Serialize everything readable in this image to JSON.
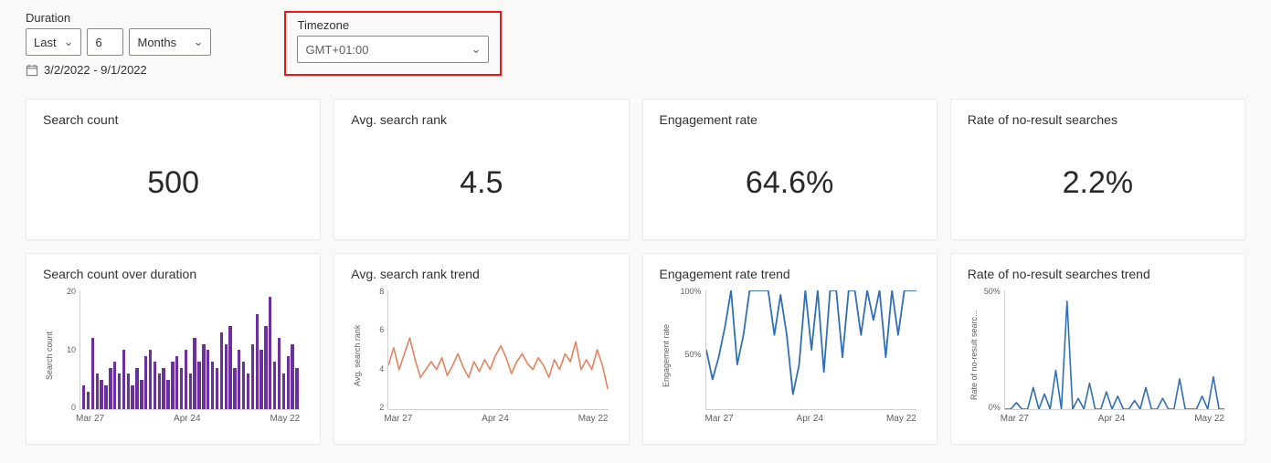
{
  "controls": {
    "duration_label": "Duration",
    "rel_value": "Last",
    "count_value": "6",
    "unit_value": "Months",
    "date_range": "3/2/2022 - 9/1/2022",
    "timezone_label": "Timezone",
    "timezone_value": "GMT+01:00"
  },
  "kpis": [
    {
      "title": "Search count",
      "value": "500"
    },
    {
      "title": "Avg. search rank",
      "value": "4.5"
    },
    {
      "title": "Engagement rate",
      "value": "64.6%"
    },
    {
      "title": "Rate of no-result searches",
      "value": "2.2%"
    }
  ],
  "charts": {
    "colors": {
      "bar": "#6b2fa0",
      "line_orange": "#e8825d",
      "line_blue": "#2f6fb5",
      "axis": "#d2d0ce",
      "text": "#605e5c"
    },
    "x_ticks": [
      "Mar 27",
      "Apr 24",
      "May 22"
    ],
    "search_count": {
      "title": "Search count over duration",
      "type": "bar",
      "y_label": "Search count",
      "y_ticks": [
        "20",
        "10",
        "0"
      ],
      "ylim": [
        0,
        20
      ],
      "values": [
        4,
        3,
        12,
        6,
        5,
        4,
        7,
        8,
        6,
        10,
        6,
        4,
        7,
        5,
        9,
        10,
        8,
        6,
        7,
        5,
        8,
        9,
        7,
        10,
        6,
        12,
        8,
        11,
        10,
        8,
        7,
        13,
        11,
        14,
        7,
        10,
        8,
        6,
        11,
        16,
        10,
        14,
        19,
        8,
        12,
        6,
        9,
        11,
        7
      ]
    },
    "avg_rank": {
      "title": "Avg. search rank trend",
      "type": "line",
      "y_label": "Avg. search rank",
      "y_ticks": [
        "8",
        "6",
        "4",
        "2"
      ],
      "ylim": [
        2,
        8
      ],
      "values": [
        4.2,
        5.1,
        4.0,
        4.8,
        5.6,
        4.5,
        3.6,
        4.0,
        4.4,
        4.0,
        4.6,
        3.7,
        4.2,
        4.8,
        4.1,
        3.6,
        4.4,
        3.9,
        4.5,
        4.0,
        4.7,
        5.2,
        4.6,
        3.8,
        4.4,
        4.8,
        4.3,
        4.0,
        4.6,
        4.2,
        3.6,
        4.5,
        4.0,
        4.8,
        4.4,
        5.4,
        4.0,
        4.5,
        4.0,
        5.0,
        4.2,
        3.0
      ]
    },
    "engagement": {
      "title": "Engagement rate trend",
      "type": "line",
      "y_label": "Engagement rate",
      "y_ticks": [
        "100%",
        "50%",
        ""
      ],
      "ylim": [
        20,
        100
      ],
      "values": [
        60,
        40,
        55,
        75,
        100,
        50,
        70,
        100,
        100,
        100,
        100,
        70,
        97,
        70,
        30,
        50,
        100,
        60,
        100,
        45,
        100,
        100,
        55,
        100,
        100,
        70,
        100,
        80,
        100,
        55,
        100,
        70,
        100,
        100,
        100
      ]
    },
    "no_result": {
      "title": "Rate of no-result searches trend",
      "type": "line",
      "y_label": "Rate of no-result searc...",
      "y_ticks": [
        "50%",
        "0%"
      ],
      "ylim": [
        0,
        55
      ],
      "values": [
        0,
        0,
        3,
        0,
        0,
        10,
        0,
        7,
        0,
        18,
        0,
        50,
        0,
        5,
        0,
        12,
        0,
        0,
        8,
        0,
        6,
        0,
        0,
        4,
        0,
        10,
        0,
        0,
        5,
        0,
        0,
        14,
        0,
        0,
        0,
        6,
        0,
        15,
        0,
        0
      ]
    }
  }
}
